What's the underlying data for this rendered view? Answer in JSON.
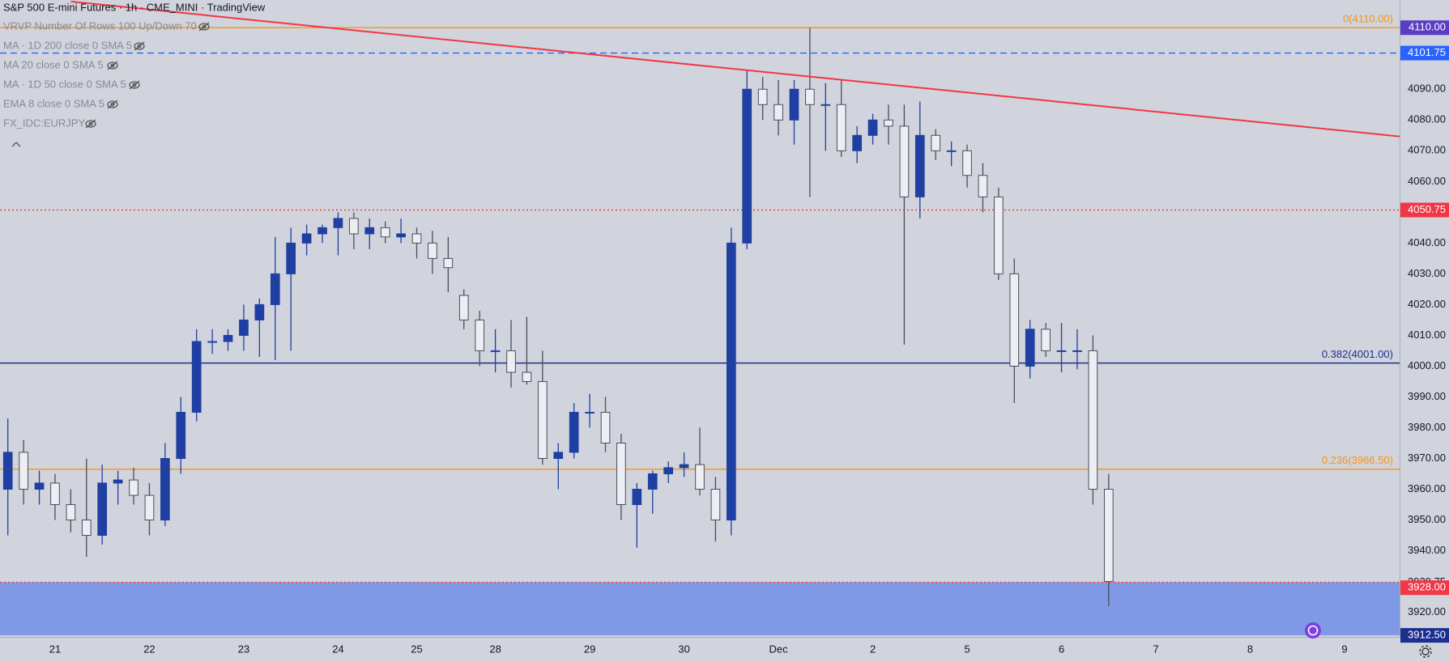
{
  "chart_data": {
    "type": "candlestick",
    "title": "S&P 500 E-mini Futures · 1h · CME_MINI · TradingView",
    "indicators": [
      "VRVP Number Of Rows 100 Up/Down 70",
      "MA · 1D 200 close 0 SMA 5",
      "MA 20 close 0 SMA 5",
      "MA · 1D 50 close 0 SMA 5",
      "EMA 8 close 0 SMA 5",
      "FX_IDC:EURJPY"
    ],
    "categories": [
      null,
      null,
      null,
      "21",
      null,
      null,
      null,
      null,
      null,
      "22",
      null,
      null,
      null,
      null,
      null,
      "23",
      null,
      null,
      null,
      null,
      null,
      "24",
      null,
      null,
      null,
      null,
      "25",
      null,
      null,
      null,
      null,
      "28",
      null,
      null,
      null,
      null,
      null,
      "29",
      null,
      null,
      null,
      null,
      null,
      "30",
      null,
      null,
      null,
      null,
      null,
      "Dec",
      null,
      null,
      null,
      null,
      null,
      "2",
      null,
      null,
      null,
      null,
      null,
      "5",
      null,
      null,
      null,
      null,
      null,
      "6",
      null,
      null,
      null,
      null,
      null,
      "7",
      null,
      null,
      null,
      null,
      null,
      "8",
      null,
      null,
      null,
      null,
      null,
      "9",
      null,
      null,
      null
    ],
    "open": [
      3960,
      3972,
      3960,
      3962,
      3955,
      3950,
      3945,
      3962,
      3963,
      3958,
      3950,
      3970,
      3985,
      4008,
      4008,
      4010,
      4015,
      4020,
      4030,
      4040,
      4043,
      4045,
      4048,
      4043,
      4045,
      4042,
      4043,
      4040,
      4035,
      4023,
      4015,
      4005,
      4005,
      3998,
      3995,
      3970,
      3972,
      3985,
      3985,
      3975,
      3955,
      3960,
      3965,
      3967,
      3968,
      3960,
      3950,
      4040,
      4090,
      4085,
      4080,
      4090,
      4085,
      4085,
      4070,
      4075,
      4080,
      4078,
      4055,
      4075,
      4070,
      4070,
      4062,
      4055,
      4030,
      4000,
      4012,
      4005,
      4005,
      4005,
      3960,
      null,
      null,
      null,
      null,
      null,
      null,
      null,
      null,
      null,
      null,
      null,
      null,
      null,
      null,
      null,
      null,
      null,
      null
    ],
    "high": [
      3983,
      3976,
      3966,
      3965,
      3960,
      3970,
      3968,
      3966,
      3967,
      3962,
      3975,
      3990,
      4012,
      4012,
      4012,
      4020,
      4022,
      4042,
      4045,
      4046,
      4046,
      4050,
      4050,
      4048,
      4047,
      4048,
      4045,
      4044,
      4042,
      4025,
      4018,
      4012,
      4015,
      4016,
      4005,
      3975,
      3988,
      3991,
      3990,
      3978,
      3962,
      3966,
      3969,
      3972,
      3980,
      3964,
      4045,
      4096,
      4094,
      4093,
      4093,
      4110,
      4092,
      4093,
      4078,
      4082,
      4085,
      4085,
      4086,
      4077,
      4073,
      4072,
      4066,
      4058,
      4035,
      4015,
      4014,
      4014,
      4012,
      4010,
      3965,
      null,
      null,
      null,
      null,
      null,
      null,
      null,
      null,
      null,
      null,
      null,
      null,
      null,
      null,
      null,
      null,
      null,
      null
    ],
    "low": [
      3945,
      3955,
      3955,
      3950,
      3946,
      3938,
      3942,
      3955,
      3955,
      3945,
      3948,
      3965,
      3982,
      4004,
      4005,
      4005,
      4003,
      4002,
      4005,
      4036,
      4040,
      4036,
      4038,
      4038,
      4040,
      4040,
      4035,
      4030,
      4024,
      4012,
      4000,
      3998,
      3993,
      3994,
      3968,
      3960,
      3970,
      3980,
      3972,
      3950,
      3941,
      3952,
      3962,
      3964,
      3958,
      3943,
      3945,
      4038,
      4080,
      4075,
      4072,
      4055,
      4070,
      4068,
      4066,
      4072,
      4072,
      4007,
      4048,
      4067,
      4065,
      4058,
      4050,
      4028,
      3988,
      3996,
      4003,
      3998,
      3999,
      3955,
      3922,
      null,
      null,
      null,
      null,
      null,
      null,
      null,
      null,
      null,
      null,
      null,
      null,
      null,
      null,
      null,
      null,
      null,
      null
    ],
    "close": [
      3972,
      3960,
      3962,
      3955,
      3950,
      3945,
      3962,
      3963,
      3958,
      3950,
      3970,
      3985,
      4008,
      4008,
      4010,
      4015,
      4020,
      4030,
      4040,
      4043,
      4045,
      4048,
      4043,
      4045,
      4042,
      4043,
      4040,
      4035,
      4032,
      4015,
      4005,
      4005,
      3998,
      3995,
      3970,
      3972,
      3985,
      3985,
      3975,
      3955,
      3960,
      3965,
      3967,
      3968,
      3960,
      3950,
      4040,
      4090,
      4085,
      4080,
      4090,
      4085,
      4085,
      4070,
      4075,
      4080,
      4078,
      4055,
      4075,
      4070,
      4070,
      4062,
      4055,
      4030,
      4000,
      4012,
      4005,
      4005,
      4005,
      3960,
      3930,
      null,
      null,
      null,
      null,
      null,
      null,
      null,
      null,
      null,
      null,
      null,
      null,
      null,
      null,
      null,
      null,
      null,
      null
    ],
    "up_color": "#1f3fa3",
    "down_color": "#eceef3",
    "down_border": "#4a4e5a",
    "ylim": [
      3912,
      4119
    ],
    "yticks": [
      {
        "value": 3920,
        "label": "3920.00"
      },
      {
        "value": 3940,
        "label": "3940.00"
      },
      {
        "value": 3950,
        "label": "3950.00"
      },
      {
        "value": 3960,
        "label": "3960.00"
      },
      {
        "value": 3970,
        "label": "3970.00"
      },
      {
        "value": 3980,
        "label": "3980.00"
      },
      {
        "value": 3990,
        "label": "3990.00"
      },
      {
        "value": 4000,
        "label": "4000.00"
      },
      {
        "value": 4010,
        "label": "4010.00"
      },
      {
        "value": 4020,
        "label": "4020.00"
      },
      {
        "value": 4030,
        "label": "4030.00"
      },
      {
        "value": 4040,
        "label": "4040.00"
      },
      {
        "value": 4060,
        "label": "4060.00"
      },
      {
        "value": 4070,
        "label": "4070.00"
      },
      {
        "value": 4080,
        "label": "4080.00"
      },
      {
        "value": 4090,
        "label": "4090.00"
      }
    ],
    "grid": false,
    "zone": {
      "values": [
        3929.75,
        3912.5
      ],
      "color": "#8099e6"
    },
    "fib_levels": [
      {
        "value": 4110,
        "label": "0(4110.00)",
        "color": "#f7931a"
      },
      {
        "value": 4001,
        "label": "0.382(4001.00)",
        "color": "#1c2f8f"
      },
      {
        "value": 3966.5,
        "label": "0.236(3966.50)",
        "color": "#f7931a"
      }
    ],
    "hlines": [
      {
        "value": 4101.75,
        "color": "#2962ff",
        "style": "dashed"
      },
      {
        "value": 4050.75,
        "color": "#f23645",
        "style": "dotted"
      },
      {
        "value": 3929.75,
        "color": "#f23645",
        "style": "dotted"
      }
    ],
    "trendline": {
      "x": [
        4,
        89
      ],
      "y": [
        4118.5,
        4074.4
      ],
      "color": "#f23645"
    },
    "price_tags": [
      {
        "value": 4110,
        "label": "4110.00",
        "bg": "#5b3cc4"
      },
      {
        "value": 4101.75,
        "label": "4101.75",
        "bg": "#2962ff"
      },
      {
        "value": 4050.75,
        "label": "4050.75",
        "bg": "#f23645"
      },
      {
        "value": 3929.75,
        "label": "3929.75"
      },
      {
        "value": 3928,
        "label": "3928.00",
        "bg": "#f23645"
      },
      {
        "value": 3912.5,
        "label": "3912.50",
        "bg": "#1c2f8f"
      }
    ]
  }
}
